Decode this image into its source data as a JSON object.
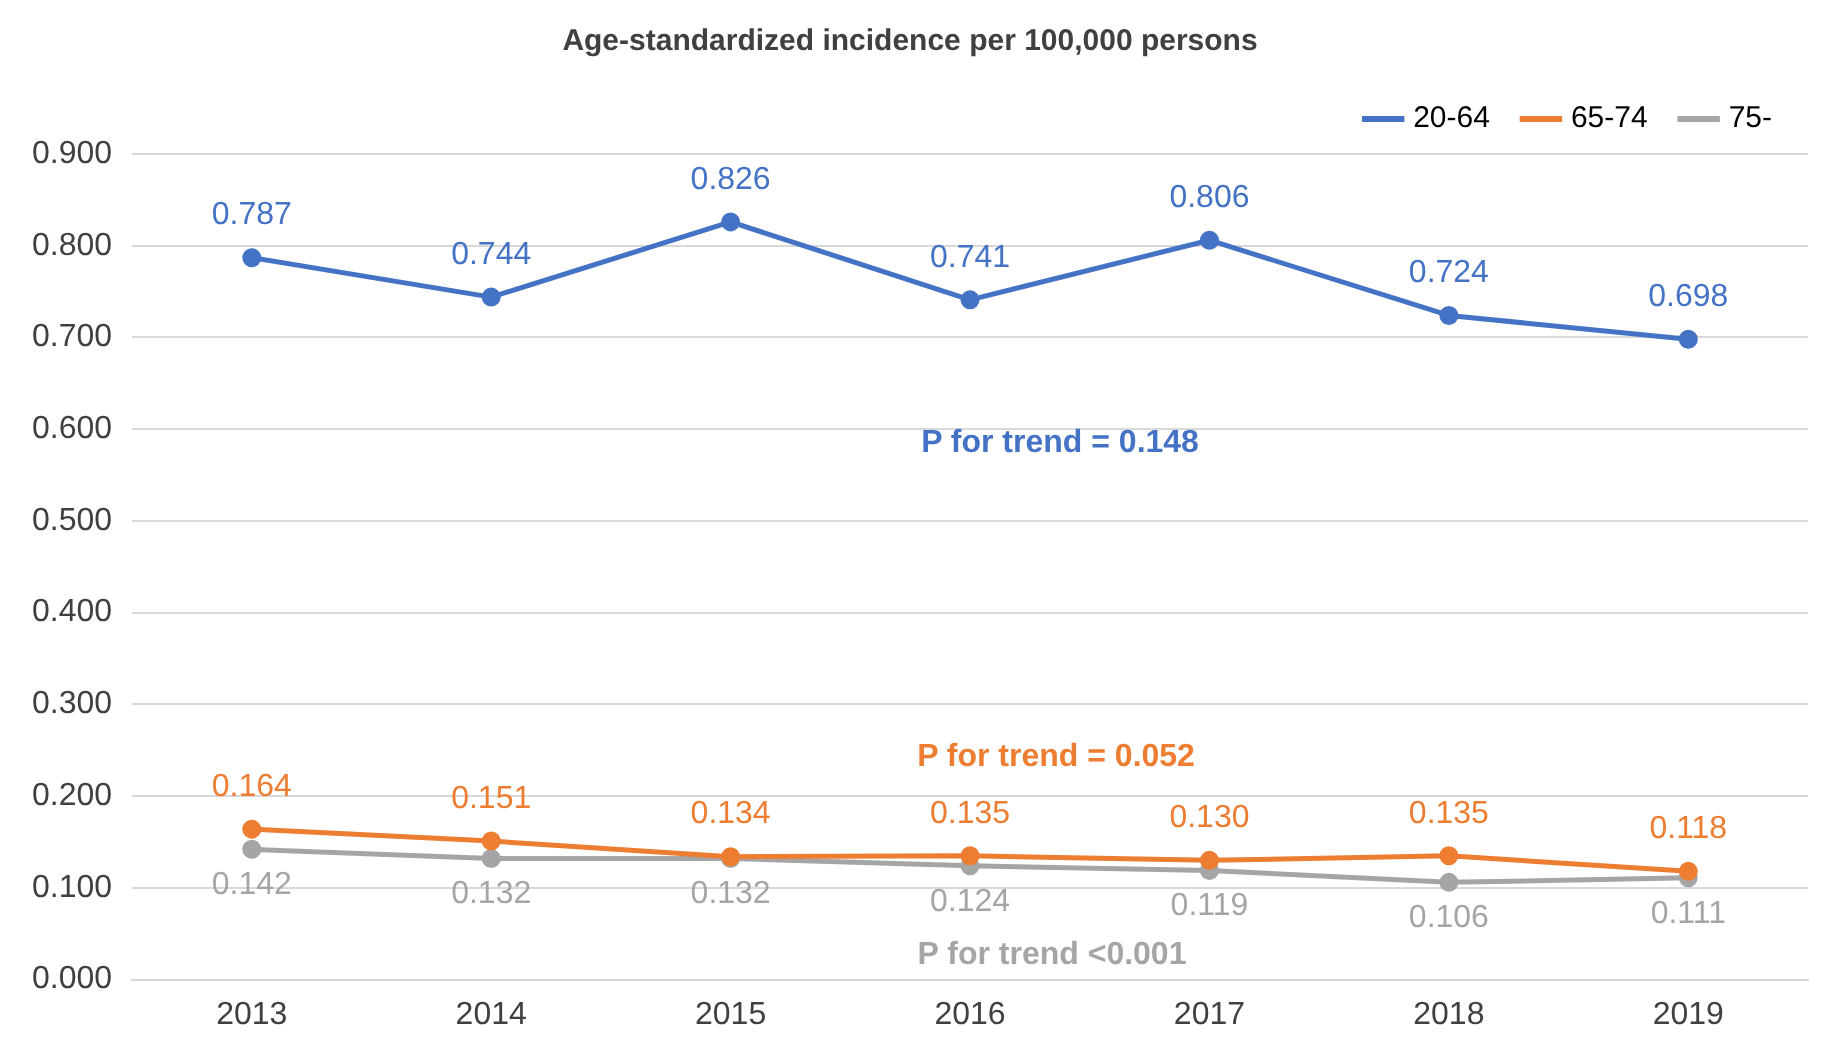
{
  "chart_data": {
    "type": "line",
    "title": "Age-standardized incidence per 100,000 persons",
    "categories": [
      "2013",
      "2014",
      "2015",
      "2016",
      "2017",
      "2018",
      "2019"
    ],
    "series": [
      {
        "name": "20-64",
        "color": "#4472c4",
        "values": [
          0.787,
          0.744,
          0.826,
          0.741,
          0.806,
          0.724,
          0.698
        ],
        "value_labels": [
          "0.787",
          "0.744",
          "0.826",
          "0.741",
          "0.806",
          "0.724",
          "0.698"
        ]
      },
      {
        "name": "65-74",
        "color": "#ed7d31",
        "values": [
          0.164,
          0.151,
          0.134,
          0.135,
          0.13,
          0.135,
          0.118
        ],
        "value_labels": [
          "0.164",
          "0.151",
          "0.134",
          "0.135",
          "0.130",
          "0.135",
          "0.118"
        ]
      },
      {
        "name": "75-",
        "color": "#a5a5a5",
        "values": [
          0.142,
          0.132,
          0.132,
          0.124,
          0.119,
          0.106,
          0.111
        ],
        "value_labels": [
          "0.142",
          "0.132",
          "0.132",
          "0.124",
          "0.119",
          "0.106",
          "0.111"
        ]
      }
    ],
    "annotations": [
      "P for trend = 0.148",
      "P for trend = 0.052",
      "P for trend <0.001"
    ],
    "ylim": [
      0,
      0.9
    ],
    "yticks": [
      {
        "value": 0,
        "label": "0.000"
      },
      {
        "value": 0.1,
        "label": "0.100"
      },
      {
        "value": 0.2,
        "label": "0.200"
      },
      {
        "value": 0.3,
        "label": "0.300"
      },
      {
        "value": 0.4,
        "label": "0.400"
      },
      {
        "value": 0.5,
        "label": "0.500"
      },
      {
        "value": 0.6,
        "label": "0.600"
      },
      {
        "value": 0.7,
        "label": "0.700"
      },
      {
        "value": 0.8,
        "label": "0.800"
      },
      {
        "value": 0.9,
        "label": "0.900"
      }
    ],
    "grid": "y",
    "legend": "top right",
    "marker": "circle",
    "line_style": "solid"
  }
}
